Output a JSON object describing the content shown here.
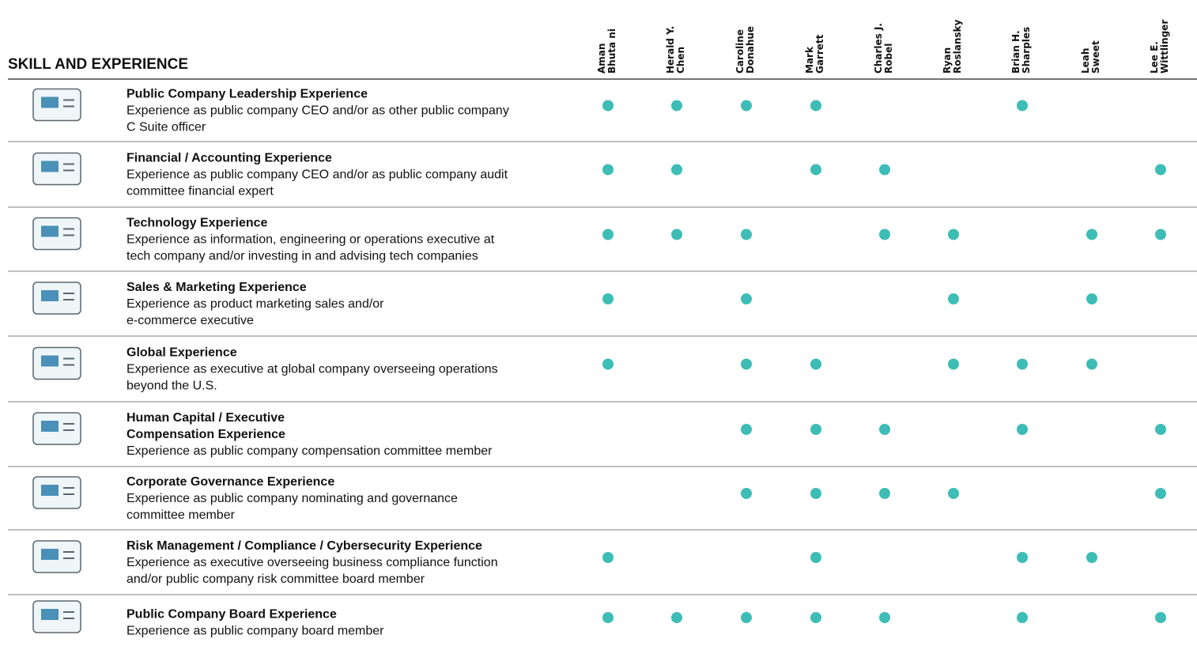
{
  "title": "SKILL AND EXPERIENCE",
  "directors": [
    [
      "Aman",
      "Bhuta ni"
    ],
    [
      "Herald Y.",
      "Chen"
    ],
    [
      "Caroline",
      "Donahue"
    ],
    [
      "Mark",
      "Garrett"
    ],
    [
      "Charles J.",
      "Robel"
    ],
    [
      "Ryan",
      "Roslansky"
    ],
    [
      "Brian H.",
      "Sharples"
    ],
    [
      "Leah",
      "Sweet"
    ],
    [
      "Lee E.",
      "Wittlinger"
    ]
  ],
  "rows": [
    {
      "title": [
        "Public Company Leadership Experience"
      ],
      "description": [
        "Experience as public company CEO and/or as other public company",
        "C Suite officer"
      ],
      "checks": [
        true,
        true,
        true,
        true,
        false,
        false,
        true,
        false,
        false
      ]
    },
    {
      "title": [
        "Financial / Accounting Experience"
      ],
      "description": [
        "Experience as public company CEO and/or as public company audit",
        "committee financial expert"
      ],
      "checks": [
        true,
        true,
        false,
        true,
        true,
        false,
        false,
        false,
        true
      ]
    },
    {
      "title": [
        "Technology Experience"
      ],
      "description": [
        "Experience as information, engineering or operations executive at",
        "tech company and/or investing in and advising tech companies"
      ],
      "checks": [
        true,
        true,
        true,
        false,
        true,
        true,
        false,
        true,
        true
      ]
    },
    {
      "title": [
        "Sales & Marketing Experience"
      ],
      "description": [
        "Experience as product marketing sales and/or",
        "e-commerce executive"
      ],
      "checks": [
        true,
        false,
        true,
        false,
        false,
        true,
        false,
        true,
        false
      ]
    },
    {
      "title": [
        "Global Experience"
      ],
      "description": [
        "Experience as executive at global company overseeing operations",
        "beyond the U.S."
      ],
      "checks": [
        true,
        false,
        true,
        true,
        false,
        true,
        true,
        true,
        false
      ]
    },
    {
      "title": [
        "Human Capital / Executive",
        "Compensation Experience"
      ],
      "description": [
        "Experience as public company compensation committee member"
      ],
      "checks": [
        false,
        false,
        true,
        true,
        true,
        false,
        true,
        false,
        true
      ]
    },
    {
      "title": [
        "Corporate Governance Experience"
      ],
      "description": [
        "Experience as public company nominating and governance",
        "committee member"
      ],
      "checks": [
        false,
        false,
        true,
        true,
        true,
        true,
        false,
        false,
        true
      ]
    },
    {
      "title": [
        "Risk Management / Compliance / Cybersecurity Experience"
      ],
      "description": [
        "Experience as executive overseeing business compliance function",
        "and/or public company risk committee board member"
      ],
      "checks": [
        true,
        false,
        false,
        true,
        false,
        false,
        true,
        true,
        false
      ]
    },
    {
      "title": [
        "Public Company Board Experience"
      ],
      "description": [
        "Experience as public company board member"
      ],
      "checks": [
        true,
        true,
        true,
        true,
        true,
        false,
        true,
        false,
        true
      ]
    }
  ]
}
